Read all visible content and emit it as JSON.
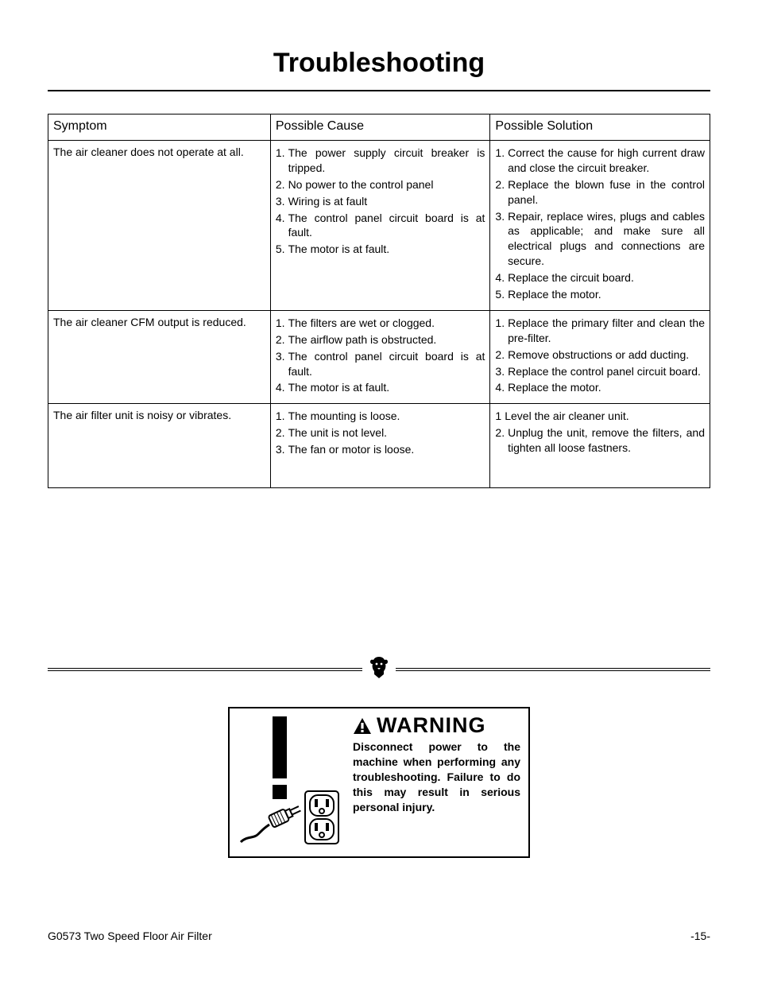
{
  "title": "Troubleshooting",
  "table": {
    "headers": [
      "Symptom",
      "Possible Cause",
      "Possible Solution"
    ],
    "rows": [
      {
        "symptom": "The air cleaner does not operate at all.",
        "causes": [
          "The power supply circuit breaker is tripped.",
          "No power to the control panel",
          "Wiring is at fault",
          "The control panel circuit board is at fault.",
          "The motor is at fault."
        ],
        "solutions": [
          "Correct the cause for high current draw and close the circuit breaker.",
          "Replace the blown fuse in the control panel.",
          "Repair, replace wires, plugs and cables as applicable; and make sure all electrical plugs and connections are secure.",
          "Replace the circuit board.",
          "Replace the motor."
        ]
      },
      {
        "symptom": "The air cleaner CFM output is reduced.",
        "causes": [
          "The filters are wet or clogged.",
          "The airflow path is obstructed.",
          "The control panel circuit board is at fault.",
          "The motor is at fault."
        ],
        "solutions": [
          "Replace the primary filter and clean the pre-filter.",
          "Remove obstructions or add ducting.",
          "Replace the control panel circuit board.",
          "Replace the motor."
        ]
      },
      {
        "symptom": "The air filter unit is noisy or vibrates.",
        "causes": [
          "The mounting is loose.",
          "The unit is not level.",
          "The fan or motor is loose."
        ],
        "solutions_raw": [
          {
            "num": "1",
            "text": "Level the air cleaner unit."
          },
          {
            "num": "2.",
            "text": "Unplug the unit, remove the filters, and tighten all loose fastners."
          }
        ],
        "extraPad": true
      }
    ]
  },
  "warning": {
    "title": "WARNING",
    "text": "Disconnect power to the machine when performing any troubleshooting. Failure to do this may result in serious personal injury."
  },
  "footer": {
    "left": "G0573 Two Speed Floor Air Filter",
    "right": "-15-"
  },
  "colors": {
    "text": "#000000",
    "background": "#ffffff",
    "border": "#000000"
  }
}
